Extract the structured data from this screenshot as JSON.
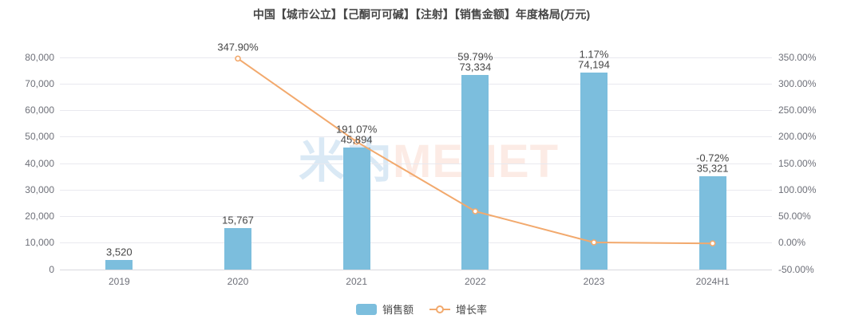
{
  "title": "中国【城市公立】【己酮可可碱】【注射】【销售金额】年度格局(万元)",
  "watermark": {
    "cn": "米内",
    "en": "MENET",
    "cn_color": "#dae9f5",
    "en_color": "#fcebe5"
  },
  "colors": {
    "bar": "#7cbedd",
    "line": "#f2a96d",
    "marker_fill": "#ffffff",
    "grid": "#e9e9ef",
    "axis_label": "#6e7079",
    "data_label": "#464646",
    "background": "#ffffff"
  },
  "legend": {
    "sales_label": "销售额",
    "growth_label": "增长率"
  },
  "chart_data": {
    "type": "bar",
    "subtype": "bar+line combo, dual y-axis",
    "title": "中国【城市公立】【己酮可可碱】【注射】【销售金额】年度格局(万元)",
    "categories": [
      "2019",
      "2020",
      "2021",
      "2022",
      "2023",
      "2024H1"
    ],
    "series": [
      {
        "name": "销售额",
        "type": "bar",
        "axis": "left",
        "values": [
          3520,
          15767,
          45894,
          73334,
          74194,
          35321
        ],
        "labels": [
          "3,520",
          "15,767",
          "45,894",
          "73,334",
          "74,194",
          "35,321"
        ],
        "color": "#7cbedd"
      },
      {
        "name": "增长率",
        "type": "line",
        "axis": "right",
        "values": [
          null,
          347.9,
          191.07,
          59.79,
          1.17,
          -0.72
        ],
        "labels": [
          null,
          "347.90%",
          "191.07%",
          "59.79%",
          "1.17%",
          "-0.72%"
        ],
        "color": "#f2a96d"
      }
    ],
    "left_axis": {
      "min": 0,
      "max": 80000,
      "step": 10000,
      "ticks": [
        "0",
        "10,000",
        "20,000",
        "30,000",
        "40,000",
        "50,000",
        "60,000",
        "70,000",
        "80,000"
      ]
    },
    "right_axis": {
      "min": -50,
      "max": 350,
      "step": 50,
      "ticks": [
        "-50.00%",
        "0.00%",
        "50.00%",
        "100.00%",
        "150.00%",
        "200.00%",
        "250.00%",
        "300.00%",
        "350.00%"
      ]
    },
    "grid": "horizontal gridlines on",
    "legend_position": "bottom-center",
    "xlabel": "",
    "ylabel_left": "万元",
    "ylabel_right": "%"
  }
}
